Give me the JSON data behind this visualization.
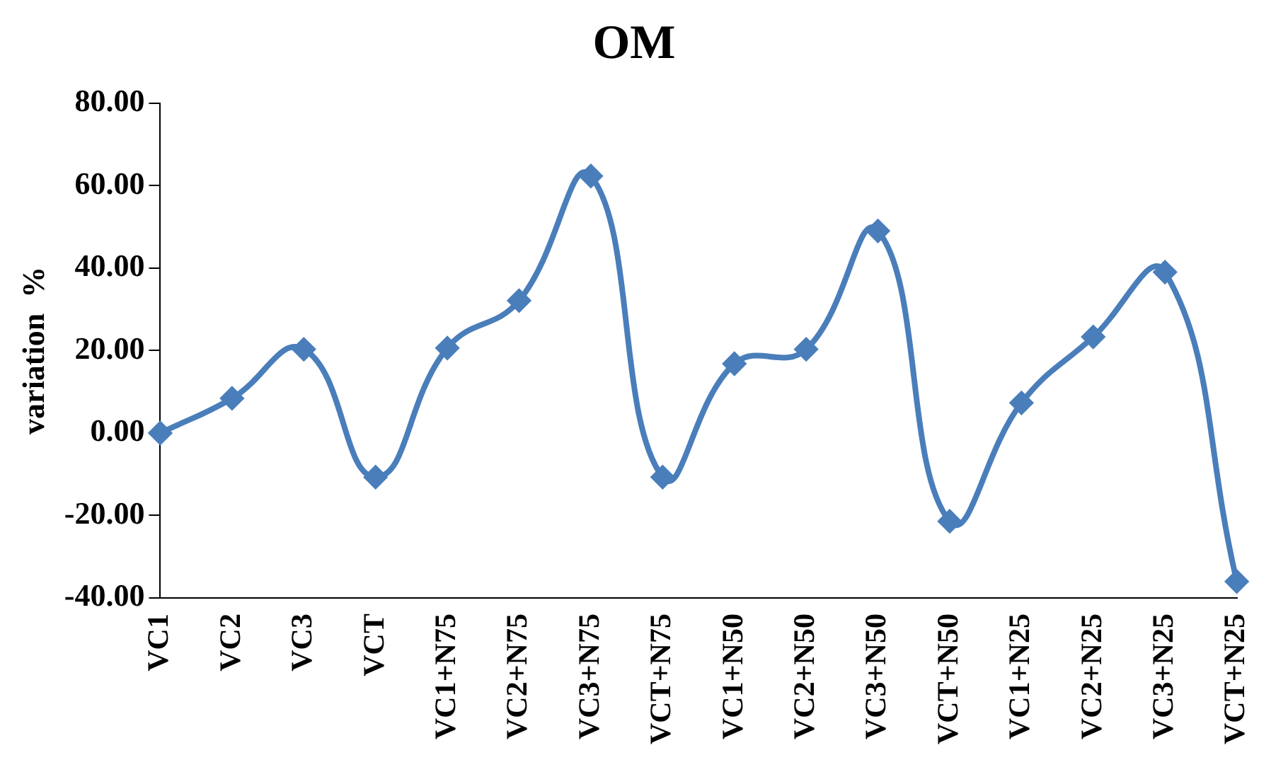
{
  "chart_data": {
    "type": "line",
    "title": "OM",
    "ylabel": "variation  %",
    "categories": [
      "VC1",
      "VC2",
      "VC3",
      "VCT",
      "VC1+N75",
      "VC2+N75",
      "VC3+N75",
      "VCT+N75",
      "VC1+N50",
      "VC2+N50",
      "VC3+N50",
      "VCT+N50",
      "VC1+N25",
      "VC2+N25",
      "VC3+N25",
      "VCT+N25"
    ],
    "series": [
      {
        "color": "#4a7ebb",
        "values": [
          0,
          8.4,
          20.3,
          -10.7,
          20.6,
          32.1,
          62.3,
          -10.7,
          16.8,
          20.3,
          49,
          -21.4,
          7.3,
          23.3,
          39,
          -36
        ]
      }
    ],
    "ylim": [
      -40,
      80
    ],
    "yticks": [
      {
        "value": -40,
        "label": "-40.00"
      },
      {
        "value": -20,
        "label": "-20.00"
      },
      {
        "value": 0,
        "label": "0.00"
      },
      {
        "value": 20,
        "label": "20.00"
      },
      {
        "value": 40,
        "label": "40.00"
      },
      {
        "value": 60,
        "label": "60.00"
      },
      {
        "value": 80,
        "label": "80.00"
      }
    ],
    "grid": false,
    "legend": false,
    "marker": "diamond",
    "line_style": "solid"
  }
}
